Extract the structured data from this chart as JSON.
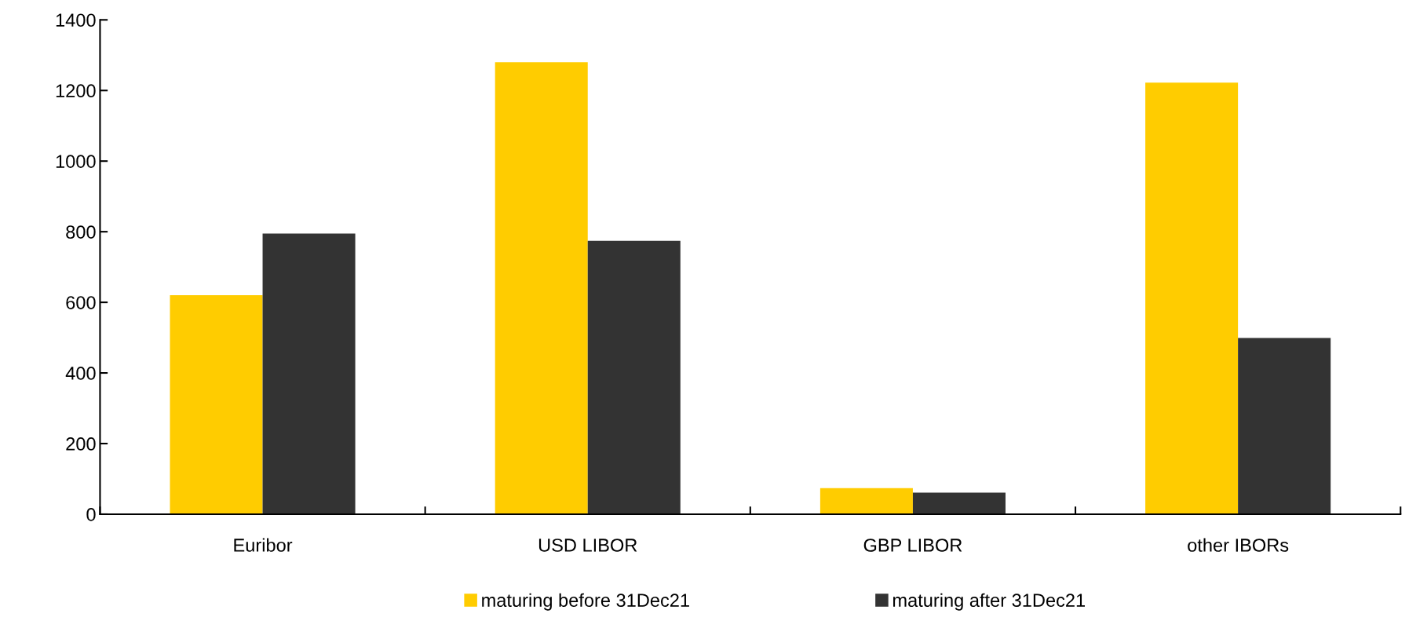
{
  "chart_data": {
    "type": "bar",
    "categories": [
      "Euribor",
      "USD LIBOR",
      "GBP LIBOR",
      "other IBORs"
    ],
    "series": [
      {
        "name": "maturing before 31Dec21",
        "color": "#ffcc00",
        "values": [
          620,
          1280,
          74,
          1222
        ]
      },
      {
        "name": "maturing after 31Dec21",
        "color": "#333333",
        "values": [
          795,
          774,
          61,
          499
        ]
      }
    ],
    "ylim": [
      0,
      1400
    ],
    "yticks": [
      0,
      200,
      400,
      600,
      800,
      1000,
      1200,
      1400
    ],
    "grid": false,
    "legend": "bottom"
  }
}
